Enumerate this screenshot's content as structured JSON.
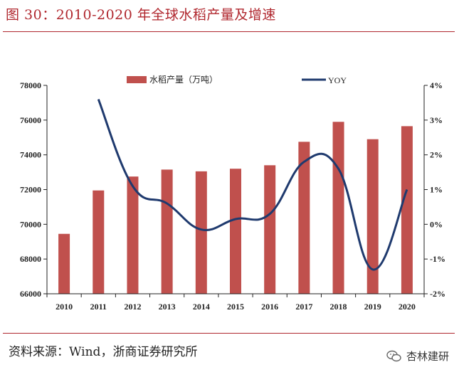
{
  "figure": {
    "title": "图 30：2010-2020 年全球水稻产量及增速",
    "source": "资料来源：Wind，浙商证券研究所",
    "watermark": "杏林建研"
  },
  "colors": {
    "accent": "#b0272e",
    "bar": "#c0504d",
    "line": "#1f3a6e",
    "axis": "#222222"
  },
  "chart_data": {
    "type": "bar+line",
    "categories": [
      "2010",
      "2011",
      "2012",
      "2013",
      "2014",
      "2015",
      "2016",
      "2017",
      "2018",
      "2019",
      "2020"
    ],
    "series": [
      {
        "name": "水稻产量（万吨）",
        "type": "bar",
        "axis": "left",
        "values": [
          69450,
          71950,
          72750,
          73150,
          73050,
          73200,
          73400,
          74750,
          75900,
          74900,
          75650
        ]
      },
      {
        "name": "YOY",
        "type": "line",
        "axis": "right",
        "smooth": true,
        "values": [
          null,
          3.6,
          1.1,
          0.6,
          -0.15,
          0.15,
          0.3,
          1.8,
          1.6,
          -1.3,
          1.0
        ]
      }
    ],
    "y_left": {
      "min": 66000,
      "max": 78000,
      "ticks": [
        "66000",
        "68000",
        "70000",
        "72000",
        "74000",
        "76000",
        "78000"
      ]
    },
    "y_right": {
      "min": -2,
      "max": 4,
      "ticks": [
        "-2%",
        "-1%",
        "0%",
        "1%",
        "2%",
        "3%",
        "4%"
      ]
    },
    "legend": [
      "水稻产量（万吨）",
      "YOY"
    ],
    "legend_position": "top",
    "grid": false
  }
}
